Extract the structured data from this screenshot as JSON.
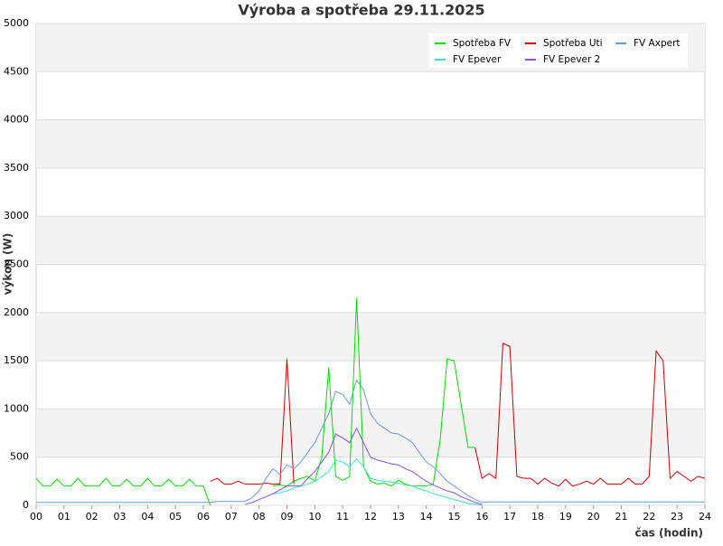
{
  "chart_data": {
    "type": "line",
    "title": "Výroba a spotřeba 29.11.2025",
    "xlabel": "čas (hodin)",
    "ylabel": "výkon (W)",
    "xlim": [
      0,
      24
    ],
    "ylim": [
      0,
      5000
    ],
    "yticks": [
      0,
      500,
      1000,
      1500,
      2000,
      2500,
      3000,
      3500,
      4000,
      4500,
      5000
    ],
    "xticks": [
      {
        "value": 0,
        "label": "00"
      },
      {
        "value": 1,
        "label": "01"
      },
      {
        "value": 2,
        "label": "02"
      },
      {
        "value": 3,
        "label": "03"
      },
      {
        "value": 4,
        "label": "04"
      },
      {
        "value": 5,
        "label": "05"
      },
      {
        "value": 6,
        "label": "06"
      },
      {
        "value": 7,
        "label": "07"
      },
      {
        "value": 8,
        "label": "08"
      },
      {
        "value": 9,
        "label": "09"
      },
      {
        "value": 10,
        "label": "10"
      },
      {
        "value": 11,
        "label": "11"
      },
      {
        "value": 12,
        "label": "12"
      },
      {
        "value": 13,
        "label": "13"
      },
      {
        "value": 14,
        "label": "14"
      },
      {
        "value": 15,
        "label": "15"
      },
      {
        "value": 16,
        "label": "16"
      },
      {
        "value": 17,
        "label": "17"
      },
      {
        "value": 18,
        "label": "18"
      },
      {
        "value": 19,
        "label": "19"
      },
      {
        "value": 20,
        "label": "20"
      },
      {
        "value": 21,
        "label": "21"
      },
      {
        "value": 22,
        "label": "22"
      },
      {
        "value": 23,
        "label": "23"
      },
      {
        "value": 24,
        "label": "24"
      }
    ],
    "grid": true,
    "legend": "upper right",
    "x": [
      0,
      0.25,
      0.5,
      0.75,
      1,
      1.25,
      1.5,
      1.75,
      2,
      2.25,
      2.5,
      2.75,
      3,
      3.25,
      3.5,
      3.75,
      4,
      4.25,
      4.5,
      4.75,
      5,
      5.25,
      5.5,
      5.75,
      6,
      6.25,
      6.5,
      6.75,
      7,
      7.25,
      7.5,
      7.75,
      8,
      8.25,
      8.5,
      8.75,
      9,
      9.25,
      9.5,
      9.75,
      10,
      10.25,
      10.5,
      10.75,
      11,
      11.25,
      11.5,
      11.75,
      12,
      12.25,
      12.5,
      12.75,
      13,
      13.25,
      13.5,
      13.75,
      14,
      14.25,
      14.5,
      14.75,
      15,
      15.25,
      15.5,
      15.75,
      16,
      16.25,
      16.5,
      16.75,
      17,
      17.25,
      17.5,
      17.75,
      18,
      18.25,
      18.5,
      18.75,
      19,
      19.25,
      19.5,
      19.75,
      20,
      20.25,
      20.5,
      20.75,
      21,
      21.25,
      21.5,
      21.75,
      22,
      22.25,
      22.5,
      22.75,
      23,
      23.25,
      23.5,
      23.75,
      24
    ],
    "series": [
      {
        "name": "Spotřeba FV",
        "color": "#00e000",
        "values": [
          280,
          200,
          200,
          270,
          200,
          200,
          280,
          200,
          200,
          200,
          280,
          200,
          200,
          270,
          200,
          200,
          280,
          200,
          200,
          270,
          200,
          200,
          270,
          200,
          200,
          0,
          null,
          null,
          null,
          null,
          null,
          null,
          null,
          null,
          200,
          210,
          200,
          250,
          280,
          300,
          250,
          500,
          1430,
          300,
          260,
          300,
          2150,
          400,
          250,
          220,
          230,
          200,
          260,
          220,
          200,
          200,
          200,
          220,
          680,
          1520,
          1500,
          1050,
          600,
          600,
          null,
          null,
          null,
          null,
          null,
          null,
          null,
          null,
          null,
          null,
          null,
          null,
          null,
          null,
          null,
          null,
          null,
          null,
          null,
          null,
          null,
          null,
          null,
          null,
          null,
          null,
          null,
          null,
          null,
          null,
          null,
          null,
          null
        ]
      },
      {
        "name": "Spotřeba Uti",
        "color": "#cc0000",
        "values": [
          null,
          null,
          null,
          null,
          null,
          null,
          null,
          null,
          null,
          null,
          null,
          null,
          null,
          null,
          null,
          null,
          null,
          null,
          null,
          null,
          null,
          null,
          null,
          null,
          null,
          250,
          280,
          220,
          220,
          250,
          220,
          220,
          220,
          230,
          220,
          220,
          1520,
          220,
          null,
          null,
          null,
          null,
          null,
          null,
          null,
          null,
          null,
          null,
          null,
          null,
          null,
          null,
          null,
          null,
          null,
          null,
          null,
          null,
          null,
          null,
          null,
          null,
          null,
          600,
          280,
          330,
          280,
          1680,
          1650,
          300,
          280,
          280,
          220,
          280,
          230,
          200,
          270,
          200,
          220,
          250,
          220,
          280,
          220,
          220,
          220,
          280,
          220,
          220,
          300,
          1600,
          1500,
          280,
          350,
          300,
          250,
          300,
          280
        ]
      },
      {
        "name": "FV Axpert",
        "color": "#6a9bd8",
        "values": [
          30,
          30,
          30,
          30,
          30,
          30,
          30,
          30,
          30,
          30,
          30,
          30,
          30,
          30,
          30,
          30,
          30,
          30,
          30,
          30,
          30,
          30,
          30,
          30,
          30,
          30,
          40,
          40,
          40,
          40,
          40,
          80,
          150,
          280,
          380,
          320,
          420,
          380,
          450,
          550,
          650,
          800,
          950,
          1180,
          1150,
          1050,
          1300,
          1200,
          950,
          850,
          800,
          750,
          740,
          700,
          650,
          550,
          450,
          400,
          330,
          250,
          200,
          150,
          100,
          60,
          30,
          35,
          35,
          35,
          35,
          35,
          35,
          35,
          35,
          35,
          35,
          35,
          35,
          35,
          35,
          35,
          35,
          35,
          35,
          35,
          35,
          35,
          35,
          35,
          35,
          35,
          35,
          35,
          35,
          35,
          35,
          35,
          35
        ]
      },
      {
        "name": "FV Epever",
        "color": "#40e0d0",
        "values": [
          null,
          null,
          null,
          null,
          null,
          null,
          null,
          null,
          null,
          null,
          null,
          null,
          null,
          null,
          null,
          null,
          null,
          null,
          null,
          null,
          null,
          null,
          null,
          null,
          null,
          null,
          null,
          null,
          null,
          null,
          null,
          null,
          null,
          null,
          120,
          130,
          150,
          180,
          200,
          220,
          250,
          300,
          350,
          470,
          450,
          400,
          480,
          400,
          280,
          260,
          250,
          240,
          230,
          210,
          200,
          170,
          150,
          120,
          100,
          80,
          60,
          40,
          20,
          10,
          5,
          null,
          null,
          null,
          null,
          null,
          null,
          null,
          null,
          null,
          null,
          null,
          null,
          null,
          null,
          null,
          null,
          null,
          null,
          null,
          null,
          null,
          null,
          null,
          null,
          null,
          null,
          null,
          null,
          null,
          null,
          null,
          null
        ]
      },
      {
        "name": "FV Epever 2",
        "color": "#8a4fe0",
        "values": [
          null,
          null,
          null,
          null,
          null,
          null,
          null,
          null,
          null,
          null,
          null,
          null,
          null,
          null,
          null,
          null,
          null,
          null,
          null,
          null,
          null,
          null,
          null,
          null,
          null,
          null,
          null,
          null,
          null,
          null,
          10,
          30,
          60,
          90,
          120,
          160,
          200,
          200,
          200,
          280,
          350,
          450,
          550,
          740,
          700,
          650,
          800,
          650,
          500,
          470,
          450,
          430,
          420,
          380,
          350,
          300,
          250,
          210,
          180,
          150,
          130,
          90,
          60,
          30,
          10,
          null,
          null,
          null,
          null,
          null,
          null,
          null,
          null,
          null,
          null,
          null,
          null,
          null,
          null,
          null,
          null,
          null,
          null,
          null,
          null,
          null,
          null,
          null,
          null,
          null,
          null,
          null,
          null,
          null,
          null,
          null,
          null
        ]
      }
    ]
  }
}
